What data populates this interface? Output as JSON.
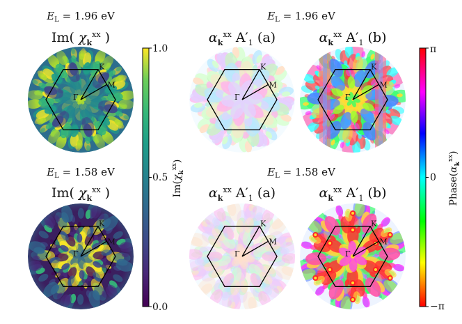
{
  "energy_label_top": "E_L = 1.96 eV",
  "energy_label_bottom": "E_L = 1.58 eV",
  "panels": {
    "im_top_title": "Im( χ_k^xx )",
    "im_bottom_title": "Im( χ_k^xx )",
    "alpha_a_top_title": "α_k^xx A′1 (a)",
    "alpha_b_top_title": "α_k^xx A′1 (b)",
    "alpha_a_bottom_title": "α_k^xx A′1 (a)",
    "alpha_b_bottom_title": "α_k^xx A′1 (b)"
  },
  "bz_labels": {
    "k": "K",
    "m": "M",
    "gamma": "Γ"
  },
  "colorbar_im": {
    "label": "Im(χ_k^xx)",
    "ticks": [
      "1.0",
      "0.5",
      "0.0"
    ],
    "colormap": "viridis"
  },
  "colorbar_phase": {
    "label": "Phase(α_k^xx)",
    "ticks": [
      "π",
      "0",
      "−π"
    ],
    "colormap": "hsv"
  }
}
